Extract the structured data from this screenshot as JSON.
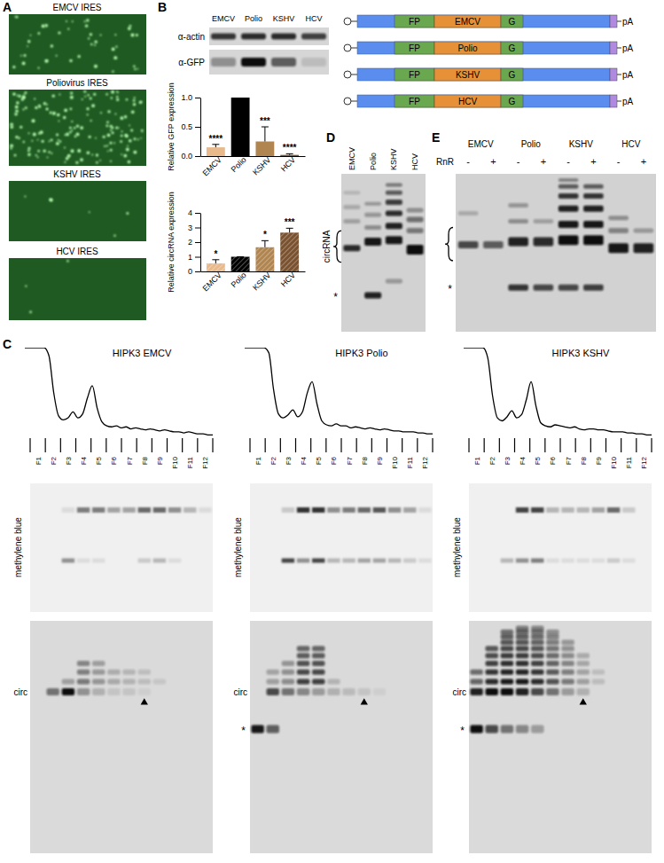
{
  "chart_data": [
    {
      "type": "bar",
      "y_label": "Relative GFP expression",
      "categories": [
        "EMCV",
        "Polio",
        "KSHV",
        "HCV"
      ],
      "values": [
        0.15,
        1,
        0.25,
        0.02
      ],
      "errors": [
        0.05,
        0,
        0.25,
        0.02
      ],
      "significance": [
        "****",
        null,
        "***",
        "****"
      ],
      "colors": [
        "#e8b98a",
        "#000000",
        "#b08550",
        "#7a5230"
      ],
      "ylim": [
        0,
        1
      ],
      "yticks": [
        {
          "value": 0,
          "label": "0.0"
        },
        {
          "value": 0.5,
          "label": "0.5"
        },
        {
          "value": 1,
          "label": "1.0"
        }
      ]
    },
    {
      "type": "bar",
      "y_label": "Relative circRNA expression",
      "categories": [
        "EMCV",
        "Polio",
        "KSHV",
        "HCV"
      ],
      "values": [
        0.55,
        1,
        1.65,
        2.65
      ],
      "errors": [
        0.25,
        0,
        0.45,
        0.3
      ],
      "significance": [
        "*",
        null,
        "*",
        "***"
      ],
      "colors": [
        "#e8b98a",
        "#000000",
        "#b08550",
        "#7a5230"
      ],
      "ylim": [
        0,
        4
      ],
      "yticks": [
        0,
        1,
        2,
        3,
        4
      ]
    }
  ],
  "figure": {
    "A": {
      "label": "A",
      "images": [
        "EMCV IRES",
        "Poliovirus IRES",
        "KSHV IRES",
        "HCV IRES"
      ]
    },
    "B": {
      "label": "B",
      "blot": {
        "lanes": [
          "EMCV",
          "Polio",
          "KSHV",
          "HCV"
        ],
        "rows": [
          "α-actin",
          "α-GFP"
        ]
      },
      "constructs": [
        {
          "elements": [
            "FP",
            "EMCV",
            "G"
          ],
          "tail": "pA"
        },
        {
          "elements": [
            "FP",
            "Polio",
            "G"
          ],
          "tail": "pA"
        },
        {
          "elements": [
            "FP",
            "KSHV",
            "G"
          ],
          "tail": "pA"
        },
        {
          "elements": [
            "FP",
            "HCV",
            "G"
          ],
          "tail": "pA"
        }
      ]
    },
    "C": {
      "label": "C",
      "panels": [
        {
          "title": "HIPK3 EMCV",
          "stain": "methylene blue",
          "circ": "circ",
          "fractions": [
            "F1",
            "F2",
            "F3",
            "F4",
            "F5",
            "F6",
            "F7",
            "F8",
            "F9",
            "F10",
            "F11",
            "F12"
          ],
          "profile": [
            100,
            100,
            100,
            100,
            100,
            92,
            55,
            32,
            28,
            30,
            36,
            30,
            34,
            50,
            62,
            40,
            26,
            22,
            21,
            22,
            20,
            21,
            19,
            20,
            19,
            18,
            19,
            18,
            17,
            18,
            17,
            16,
            16,
            15,
            16,
            15,
            14,
            14,
            13,
            13
          ]
        },
        {
          "title": "HIPK3 Polio",
          "stain": "methylene blue",
          "circ": "circ",
          "star": "*",
          "fractions": [
            "F1",
            "F2",
            "F3",
            "F4",
            "F5",
            "F6",
            "F7",
            "F8",
            "F9",
            "F10",
            "F11",
            "F12"
          ],
          "profile": [
            100,
            100,
            100,
            100,
            100,
            95,
            58,
            34,
            30,
            33,
            38,
            31,
            36,
            55,
            66,
            44,
            27,
            23,
            22,
            24,
            22,
            22,
            20,
            21,
            20,
            19,
            20,
            19,
            18,
            19,
            18,
            17,
            17,
            16,
            16,
            16,
            15,
            15,
            14,
            14
          ]
        },
        {
          "title": "HIPK3 KSHV",
          "stain": "methylene blue",
          "circ": "circ",
          "star": "*",
          "fractions": [
            "F1",
            "F2",
            "F3",
            "F4",
            "F5",
            "F6",
            "F7",
            "F8",
            "F9",
            "F10",
            "F11",
            "F12"
          ],
          "profile": [
            100,
            100,
            100,
            100,
            100,
            90,
            52,
            30,
            27,
            31,
            37,
            30,
            33,
            48,
            66,
            42,
            25,
            22,
            21,
            23,
            22,
            21,
            20,
            21,
            19,
            18,
            19,
            19,
            18,
            18,
            17,
            16,
            16,
            16,
            15,
            15,
            14,
            14,
            13,
            13
          ]
        }
      ]
    },
    "D": {
      "label": "D",
      "lanes": [
        "EMCV",
        "Polio",
        "KSHV",
        "HCV"
      ],
      "bracket": "circRNA",
      "star": "*"
    },
    "E": {
      "label": "E",
      "lanes": [
        "EMCV",
        "Polio",
        "KSHV",
        "HCV"
      ],
      "treatment": "RnR",
      "conditions": [
        "-",
        "+"
      ],
      "star": "*"
    }
  }
}
